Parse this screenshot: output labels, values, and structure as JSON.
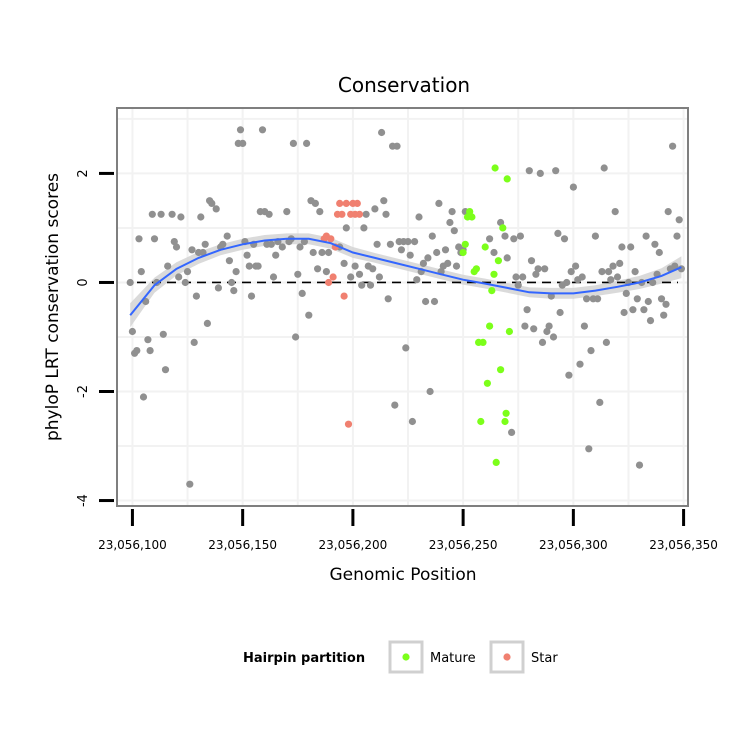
{
  "chart_data": {
    "type": "scatter",
    "title": "Conservation",
    "xlabel": "Genomic Position",
    "ylabel": "phyloP LRT conservation scores",
    "xlim": [
      23056093,
      23056352
    ],
    "ylim": [
      -4.1,
      3.2
    ],
    "xticks": [
      23056100,
      23056150,
      23056200,
      23056250,
      23056300,
      23056350
    ],
    "xtick_labels": [
      "23,056,100",
      "23,056,150",
      "23,056,200",
      "23,056,250",
      "23,056,300",
      "23,056,350"
    ],
    "yticks": [
      -4,
      -2,
      0,
      2
    ],
    "ytick_labels": [
      "-4",
      "-2",
      "0",
      "2"
    ],
    "reference_line": {
      "y": 0,
      "style": "dashed"
    },
    "legend": {
      "title": "Hairpin partition",
      "position": "bottom",
      "entries": [
        {
          "label": "Mature",
          "color": "#7cff1a"
        },
        {
          "label": "Star",
          "color": "#f08070"
        }
      ]
    },
    "colors": {
      "other": "#909090",
      "Mature": "#7cff1a",
      "Star": "#f08070",
      "smooth": "#3366ff",
      "ribbon": "#d3d3d3",
      "panel_border": "#7f7f7f",
      "grid": "#f2f2f2"
    },
    "series": [
      {
        "name": "Other",
        "points": [
          [
            23056099,
            0.0
          ],
          [
            23056100,
            -0.9
          ],
          [
            23056101,
            -1.3
          ],
          [
            23056102,
            -1.25
          ],
          [
            23056103,
            0.8
          ],
          [
            23056104,
            0.2
          ],
          [
            23056105,
            -2.1
          ],
          [
            23056106,
            -0.35
          ],
          [
            23056107,
            -1.05
          ],
          [
            23056108,
            -1.25
          ],
          [
            23056109,
            1.25
          ],
          [
            23056110,
            0.8
          ],
          [
            23056111,
            0.0
          ],
          [
            23056113,
            1.25
          ],
          [
            23056114,
            -0.95
          ],
          [
            23056115,
            -1.6
          ],
          [
            23056116,
            0.3
          ],
          [
            23056118,
            1.25
          ],
          [
            23056119,
            0.75
          ],
          [
            23056120,
            0.65
          ],
          [
            23056121,
            0.1
          ],
          [
            23056122,
            1.2
          ],
          [
            23056124,
            0.0
          ],
          [
            23056125,
            0.2
          ],
          [
            23056126,
            -3.7
          ],
          [
            23056127,
            0.6
          ],
          [
            23056128,
            -1.1
          ],
          [
            23056129,
            -0.25
          ],
          [
            23056130,
            0.55
          ],
          [
            23056131,
            1.2
          ],
          [
            23056132,
            0.55
          ],
          [
            23056133,
            0.7
          ],
          [
            23056134,
            -0.75
          ],
          [
            23056135,
            1.5
          ],
          [
            23056136,
            1.45
          ],
          [
            23056138,
            1.35
          ],
          [
            23056139,
            -0.1
          ],
          [
            23056140,
            0.65
          ],
          [
            23056141,
            0.7
          ],
          [
            23056143,
            0.85
          ],
          [
            23056144,
            0.4
          ],
          [
            23056145,
            0.0
          ],
          [
            23056146,
            -0.15
          ],
          [
            23056147,
            0.2
          ],
          [
            23056148,
            2.55
          ],
          [
            23056149,
            2.8
          ],
          [
            23056150,
            2.55
          ],
          [
            23056151,
            0.75
          ],
          [
            23056152,
            0.5
          ],
          [
            23056153,
            0.3
          ],
          [
            23056154,
            -0.25
          ],
          [
            23056155,
            0.7
          ],
          [
            23056156,
            0.3
          ],
          [
            23056157,
            0.3
          ],
          [
            23056158,
            1.3
          ],
          [
            23056159,
            2.8
          ],
          [
            23056160,
            1.3
          ],
          [
            23056161,
            0.7
          ],
          [
            23056162,
            1.25
          ],
          [
            23056163,
            0.7
          ],
          [
            23056164,
            0.1
          ],
          [
            23056165,
            0.5
          ],
          [
            23056166,
            0.75
          ],
          [
            23056168,
            0.65
          ],
          [
            23056170,
            1.3
          ],
          [
            23056171,
            0.75
          ],
          [
            23056172,
            0.8
          ],
          [
            23056173,
            2.55
          ],
          [
            23056174,
            -1.0
          ],
          [
            23056175,
            0.15
          ],
          [
            23056176,
            0.65
          ],
          [
            23056177,
            -0.2
          ],
          [
            23056178,
            0.75
          ],
          [
            23056179,
            2.55
          ],
          [
            23056180,
            -0.6
          ],
          [
            23056181,
            1.5
          ],
          [
            23056182,
            0.55
          ],
          [
            23056183,
            1.45
          ],
          [
            23056184,
            0.25
          ],
          [
            23056185,
            1.3
          ],
          [
            23056186,
            0.55
          ],
          [
            23056188,
            0.2
          ],
          [
            23056189,
            0.55
          ],
          [
            23056194,
            0.65
          ],
          [
            23056196,
            0.35
          ],
          [
            23056197,
            1.0
          ],
          [
            23056199,
            0.1
          ],
          [
            23056201,
            0.3
          ],
          [
            23056203,
            0.15
          ],
          [
            23056204,
            -0.05
          ],
          [
            23056205,
            1.0
          ],
          [
            23056206,
            1.25
          ],
          [
            23056207,
            0.3
          ],
          [
            23056208,
            -0.05
          ],
          [
            23056209,
            0.25
          ],
          [
            23056210,
            1.35
          ],
          [
            23056211,
            0.7
          ],
          [
            23056212,
            0.1
          ],
          [
            23056213,
            2.75
          ],
          [
            23056214,
            1.5
          ],
          [
            23056215,
            1.25
          ],
          [
            23056216,
            -0.3
          ],
          [
            23056217,
            0.7
          ],
          [
            23056218,
            2.5
          ],
          [
            23056219,
            -2.25
          ],
          [
            23056220,
            2.5
          ],
          [
            23056221,
            0.75
          ],
          [
            23056222,
            0.6
          ],
          [
            23056223,
            0.75
          ],
          [
            23056224,
            -1.2
          ],
          [
            23056225,
            0.75
          ],
          [
            23056226,
            0.5
          ],
          [
            23056227,
            -2.55
          ],
          [
            23056228,
            0.75
          ],
          [
            23056229,
            0.05
          ],
          [
            23056230,
            1.2
          ],
          [
            23056231,
            0.2
          ],
          [
            23056232,
            0.35
          ],
          [
            23056233,
            -0.35
          ],
          [
            23056234,
            0.45
          ],
          [
            23056235,
            -2.0
          ],
          [
            23056236,
            0.85
          ],
          [
            23056237,
            -0.35
          ],
          [
            23056238,
            0.55
          ],
          [
            23056239,
            1.45
          ],
          [
            23056240,
            0.2
          ],
          [
            23056241,
            0.3
          ],
          [
            23056242,
            0.6
          ],
          [
            23056243,
            0.35
          ],
          [
            23056244,
            1.1
          ],
          [
            23056245,
            1.3
          ],
          [
            23056246,
            0.95
          ],
          [
            23056247,
            0.3
          ],
          [
            23056248,
            0.65
          ],
          [
            23056249,
            0.55
          ],
          [
            23056250,
            0.6
          ],
          [
            23056251,
            1.3
          ],
          [
            23056262,
            0.8
          ],
          [
            23056264,
            0.55
          ],
          [
            23056267,
            1.1
          ],
          [
            23056269,
            0.85
          ],
          [
            23056270,
            0.45
          ],
          [
            23056272,
            -2.75
          ],
          [
            23056273,
            0.8
          ],
          [
            23056274,
            0.1
          ],
          [
            23056275,
            -0.05
          ],
          [
            23056276,
            0.85
          ],
          [
            23056277,
            0.1
          ],
          [
            23056278,
            -0.8
          ],
          [
            23056279,
            -0.5
          ],
          [
            23056280,
            2.05
          ],
          [
            23056281,
            0.4
          ],
          [
            23056282,
            -0.85
          ],
          [
            23056283,
            0.15
          ],
          [
            23056284,
            0.25
          ],
          [
            23056285,
            2.0
          ],
          [
            23056286,
            -1.1
          ],
          [
            23056287,
            0.25
          ],
          [
            23056288,
            -0.9
          ],
          [
            23056289,
            -0.8
          ],
          [
            23056290,
            -0.25
          ],
          [
            23056291,
            -1.0
          ],
          [
            23056292,
            2.05
          ],
          [
            23056293,
            0.9
          ],
          [
            23056294,
            -0.55
          ],
          [
            23056295,
            -0.05
          ],
          [
            23056296,
            0.8
          ],
          [
            23056297,
            0.0
          ],
          [
            23056298,
            -1.7
          ],
          [
            23056299,
            0.2
          ],
          [
            23056300,
            1.75
          ],
          [
            23056301,
            0.3
          ],
          [
            23056302,
            0.05
          ],
          [
            23056303,
            -1.5
          ],
          [
            23056304,
            0.1
          ],
          [
            23056305,
            -0.8
          ],
          [
            23056306,
            -0.3
          ],
          [
            23056307,
            -3.05
          ],
          [
            23056308,
            -1.25
          ],
          [
            23056309,
            -0.3
          ],
          [
            23056310,
            0.85
          ],
          [
            23056311,
            -0.3
          ],
          [
            23056312,
            -2.2
          ],
          [
            23056313,
            0.2
          ],
          [
            23056314,
            2.1
          ],
          [
            23056315,
            -1.1
          ],
          [
            23056316,
            0.2
          ],
          [
            23056317,
            0.05
          ],
          [
            23056318,
            0.3
          ],
          [
            23056319,
            1.3
          ],
          [
            23056320,
            0.1
          ],
          [
            23056321,
            0.35
          ],
          [
            23056322,
            0.65
          ],
          [
            23056323,
            -0.55
          ],
          [
            23056324,
            -0.2
          ],
          [
            23056325,
            0.0
          ],
          [
            23056326,
            0.65
          ],
          [
            23056327,
            -0.5
          ],
          [
            23056328,
            0.2
          ],
          [
            23056329,
            -0.3
          ],
          [
            23056330,
            -3.35
          ],
          [
            23056331,
            0.0
          ],
          [
            23056332,
            -0.5
          ],
          [
            23056333,
            0.85
          ],
          [
            23056334,
            -0.35
          ],
          [
            23056335,
            -0.7
          ],
          [
            23056336,
            0.0
          ],
          [
            23056337,
            0.7
          ],
          [
            23056338,
            0.15
          ],
          [
            23056339,
            0.55
          ],
          [
            23056340,
            -0.3
          ],
          [
            23056341,
            -0.6
          ],
          [
            23056342,
            -0.4
          ],
          [
            23056343,
            1.3
          ],
          [
            23056344,
            0.25
          ],
          [
            23056345,
            2.5
          ],
          [
            23056346,
            0.3
          ],
          [
            23056347,
            0.85
          ],
          [
            23056348,
            1.15
          ],
          [
            23056349,
            0.25
          ]
        ]
      },
      {
        "name": "Mature",
        "points": [
          [
            23056250,
            0.55
          ],
          [
            23056251,
            0.7
          ],
          [
            23056252,
            1.2
          ],
          [
            23056253,
            1.3
          ],
          [
            23056254,
            1.2
          ],
          [
            23056255,
            0.2
          ],
          [
            23056256,
            0.25
          ],
          [
            23056257,
            -1.1
          ],
          [
            23056258,
            -2.55
          ],
          [
            23056259,
            -1.1
          ],
          [
            23056260,
            0.65
          ],
          [
            23056261,
            -1.85
          ],
          [
            23056262,
            -0.8
          ],
          [
            23056263,
            -0.15
          ],
          [
            23056264,
            0.15
          ],
          [
            23056264.5,
            2.1
          ],
          [
            23056265,
            -3.3
          ],
          [
            23056266,
            0.4
          ],
          [
            23056267,
            -1.6
          ],
          [
            23056268,
            1.0
          ],
          [
            23056269,
            -2.55
          ],
          [
            23056269.5,
            -2.4
          ],
          [
            23056270,
            1.9
          ],
          [
            23056271,
            -0.9
          ]
        ]
      },
      {
        "name": "Star",
        "points": [
          [
            23056187,
            0.8
          ],
          [
            23056188,
            0.85
          ],
          [
            23056189,
            0.0
          ],
          [
            23056190,
            0.8
          ],
          [
            23056191,
            0.1
          ],
          [
            23056192,
            0.65
          ],
          [
            23056193,
            1.25
          ],
          [
            23056194,
            1.45
          ],
          [
            23056195,
            1.25
          ],
          [
            23056196,
            -0.25
          ],
          [
            23056197,
            1.45
          ],
          [
            23056198,
            -2.6
          ],
          [
            23056199,
            1.25
          ],
          [
            23056200,
            1.45
          ],
          [
            23056201,
            1.25
          ],
          [
            23056202,
            1.45
          ],
          [
            23056203,
            1.25
          ]
        ]
      }
    ],
    "smooth": {
      "method": "loess",
      "points": [
        [
          23056099,
          -0.6
        ],
        [
          23056110,
          -0.05
        ],
        [
          23056120,
          0.25
        ],
        [
          23056130,
          0.45
        ],
        [
          23056140,
          0.6
        ],
        [
          23056150,
          0.7
        ],
        [
          23056160,
          0.77
        ],
        [
          23056170,
          0.8
        ],
        [
          23056180,
          0.8
        ],
        [
          23056190,
          0.72
        ],
        [
          23056200,
          0.55
        ],
        [
          23056210,
          0.45
        ],
        [
          23056220,
          0.35
        ],
        [
          23056230,
          0.25
        ],
        [
          23056240,
          0.15
        ],
        [
          23056250,
          0.05
        ],
        [
          23056260,
          -0.02
        ],
        [
          23056270,
          -0.1
        ],
        [
          23056280,
          -0.18
        ],
        [
          23056290,
          -0.2
        ],
        [
          23056300,
          -0.2
        ],
        [
          23056310,
          -0.15
        ],
        [
          23056320,
          -0.08
        ],
        [
          23056330,
          0.0
        ],
        [
          23056340,
          0.12
        ],
        [
          23056349,
          0.28
        ]
      ],
      "ribbon_halfwidth": [
        0.22,
        0.14,
        0.12,
        0.11,
        0.1,
        0.1,
        0.1,
        0.1,
        0.1,
        0.1,
        0.1,
        0.09,
        0.09,
        0.09,
        0.09,
        0.09,
        0.09,
        0.09,
        0.09,
        0.1,
        0.1,
        0.1,
        0.11,
        0.12,
        0.14,
        0.2
      ]
    }
  }
}
